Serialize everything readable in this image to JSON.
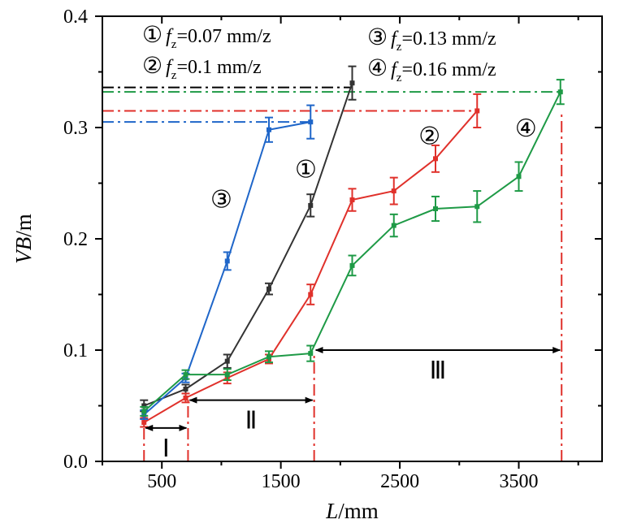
{
  "chart_data": {
    "type": "line",
    "x_axis": {
      "label_italic": "L",
      "label_unit": "/mm",
      "range": [
        0,
        4200
      ],
      "ticks": [
        "500",
        "1500",
        "2500",
        "3500"
      ],
      "tick_values": [
        500,
        1500,
        2500,
        3500
      ]
    },
    "y_axis": {
      "label_italic": "VB",
      "label_unit": "/m",
      "range": [
        0.0,
        0.4
      ],
      "ticks": [
        "0.0",
        "0.1",
        "0.2",
        "0.3",
        "0.4"
      ],
      "tick_values": [
        0.0,
        0.1,
        0.2,
        0.3,
        0.4
      ]
    },
    "legend": [
      {
        "num": "①",
        "pre": "f",
        "sub": "z",
        "post": "=0.07 mm/z"
      },
      {
        "num": "②",
        "pre": "f",
        "sub": "z",
        "post": "=0.1 mm/z"
      },
      {
        "num": "③",
        "pre": "f",
        "sub": "z",
        "post": "=0.13 mm/z"
      },
      {
        "num": "④",
        "pre": "f",
        "sub": "z",
        "post": "=0.16 mm/z"
      }
    ],
    "series": [
      {
        "id": "1",
        "color": "#333333",
        "x": [
          350,
          700,
          1050,
          1400,
          1750,
          2100
        ],
        "y": [
          0.05,
          0.065,
          0.09,
          0.155,
          0.23,
          0.34
        ],
        "err": [
          0.005,
          0.004,
          0.006,
          0.005,
          0.01,
          0.015
        ]
      },
      {
        "id": "2",
        "color": "#e0312b",
        "x": [
          350,
          700,
          1050,
          1400,
          1750,
          2100,
          2450,
          2800,
          3150
        ],
        "y": [
          0.035,
          0.057,
          0.075,
          0.092,
          0.15,
          0.235,
          0.243,
          0.272,
          0.315
        ],
        "err": [
          0.004,
          0.004,
          0.005,
          0.004,
          0.009,
          0.01,
          0.012,
          0.012,
          0.015
        ]
      },
      {
        "id": "3",
        "color": "#1f66c9",
        "x": [
          350,
          700,
          1050,
          1400,
          1750
        ],
        "y": [
          0.042,
          0.075,
          0.18,
          0.298,
          0.305
        ],
        "err": [
          0.004,
          0.004,
          0.008,
          0.011,
          0.015
        ]
      },
      {
        "id": "4",
        "color": "#1e9a46",
        "x": [
          350,
          700,
          1050,
          1400,
          1750,
          2100,
          2450,
          2800,
          3150,
          3500,
          3850
        ],
        "y": [
          0.045,
          0.078,
          0.078,
          0.094,
          0.097,
          0.176,
          0.212,
          0.227,
          0.229,
          0.256,
          0.332
        ],
        "err": [
          0.004,
          0.004,
          0.005,
          0.005,
          0.007,
          0.009,
          0.01,
          0.011,
          0.014,
          0.013,
          0.011
        ]
      }
    ],
    "reference_lines": [
      {
        "color": "#000000",
        "y": 0.336,
        "x0": 0,
        "x1": 2100
      },
      {
        "color": "#e0312b",
        "y": 0.315,
        "x0": 0,
        "x1": 3150
      },
      {
        "color": "#1f66c9",
        "y": 0.305,
        "x0": 0,
        "x1": 1750
      },
      {
        "color": "#1e9a46",
        "y": 0.332,
        "x0": 0,
        "x1": 3850
      }
    ],
    "stage_boundaries": {
      "color": "#e0312b",
      "x": [
        350,
        720,
        1780,
        3860
      ]
    },
    "stages": [
      {
        "label": "Ⅰ",
        "x0": 350,
        "x1": 720,
        "y": 0.03
      },
      {
        "label": "Ⅱ",
        "x0": 720,
        "x1": 1780,
        "y": 0.055
      },
      {
        "label": "Ⅲ",
        "x0": 1780,
        "x1": 3860,
        "y": 0.1
      }
    ],
    "curve_labels": [
      {
        "text": "①",
        "x": 1710,
        "y": 0.255
      },
      {
        "text": "②",
        "x": 2750,
        "y": 0.285
      },
      {
        "text": "③",
        "x": 1000,
        "y": 0.228
      },
      {
        "text": "④",
        "x": 3560,
        "y": 0.292
      }
    ]
  }
}
